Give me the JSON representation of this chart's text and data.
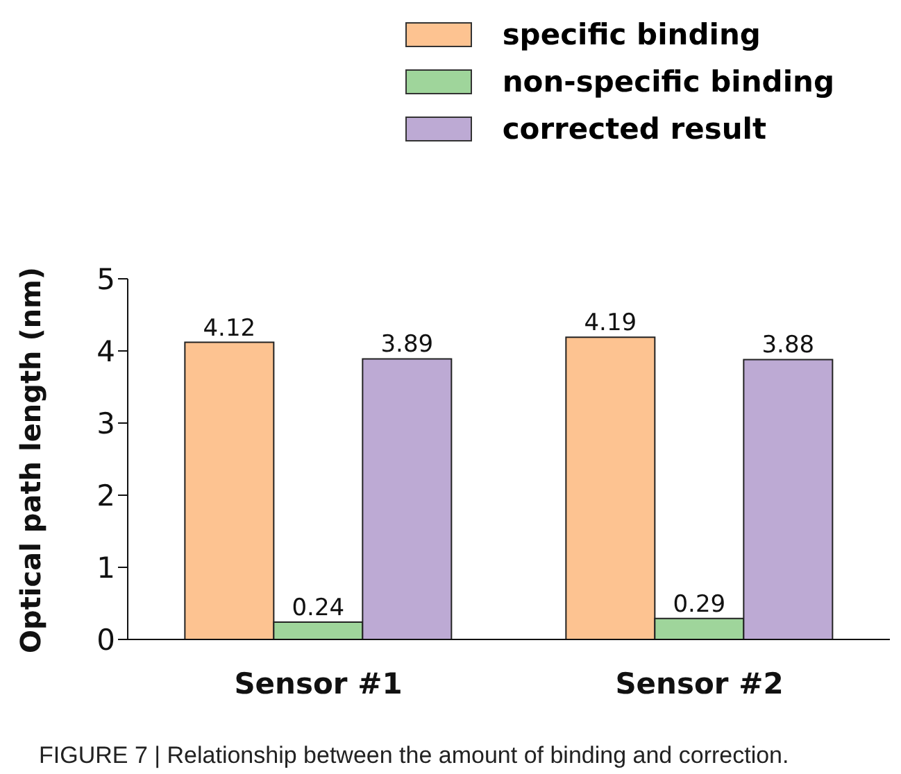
{
  "chart_data": {
    "type": "bar",
    "categories": [
      "Sensor #1",
      "Sensor #2"
    ],
    "series": [
      {
        "name": "specific binding",
        "color": "#fdc391",
        "values": [
          4.12,
          4.19
        ]
      },
      {
        "name": "non-specific binding",
        "color": "#9fd59b",
        "values": [
          0.24,
          0.29
        ]
      },
      {
        "name": "corrected result",
        "color": "#bdaad4",
        "values": [
          3.89,
          3.88
        ]
      }
    ],
    "ylabel": "Optical path length (nm)",
    "ylim": [
      0,
      5
    ],
    "yticks": [
      0,
      1,
      2,
      3,
      4,
      5
    ],
    "data_labels": true,
    "legend": "top right",
    "grid": false,
    "annotations": [
      "FIGURE 7 | Relationship between the amount of binding and correction."
    ]
  }
}
